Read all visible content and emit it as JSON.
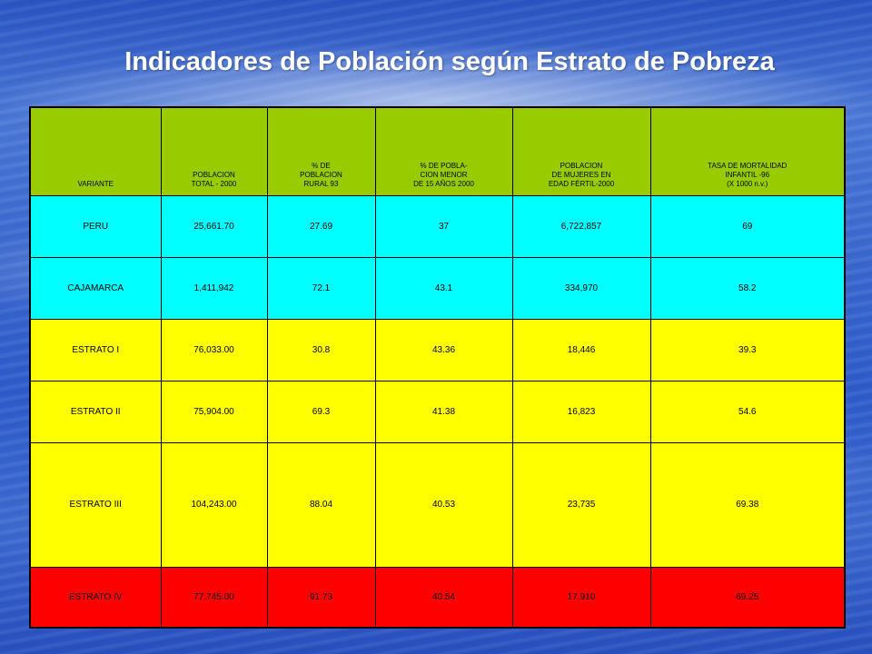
{
  "title": "Indicadores de Población según Estrato de Pobreza",
  "colors": {
    "header": "#99cc00",
    "cyan_rows": "#00ffff",
    "yellow_rows": "#ffff00",
    "red_row": "#ff0000"
  },
  "table": {
    "headers": [
      "VARIANTE",
      "POBLACION\nTOTAL - 2000",
      "% DE\nPOBLACION\nRURAL 93",
      "% DE POBLA-\nCION MENOR\nDE 15 AÑOS 2000",
      "POBLACION\nDE MUJERES EN\nEDAD FÉRTIL-2000",
      "TASA DE MORTALIDAD\nINFANTIL -96\n(X 1000 n.v.)"
    ],
    "rows": [
      [
        "PERU",
        "25,661.70",
        "27.69",
        "37",
        "6,722,857",
        "69"
      ],
      [
        "CAJAMARCA",
        "1,411,942",
        "72.1",
        "43.1",
        "334,970",
        "58.2"
      ],
      [
        "ESTRATO I",
        "76,033.00",
        "30.8",
        "43.36",
        "18,446",
        "39.3"
      ],
      [
        "ESTRATO II",
        "75,904.00",
        "69.3",
        "41.38",
        "16,823",
        "54.6"
      ],
      [
        "ESTRATO III",
        "104,243.00",
        "88.04",
        "40.53",
        "23,735",
        "69.38"
      ],
      [
        "ESTRATO IV",
        "77,745.00",
        "91.73",
        "40.54",
        "17,910",
        "69.25"
      ]
    ]
  }
}
